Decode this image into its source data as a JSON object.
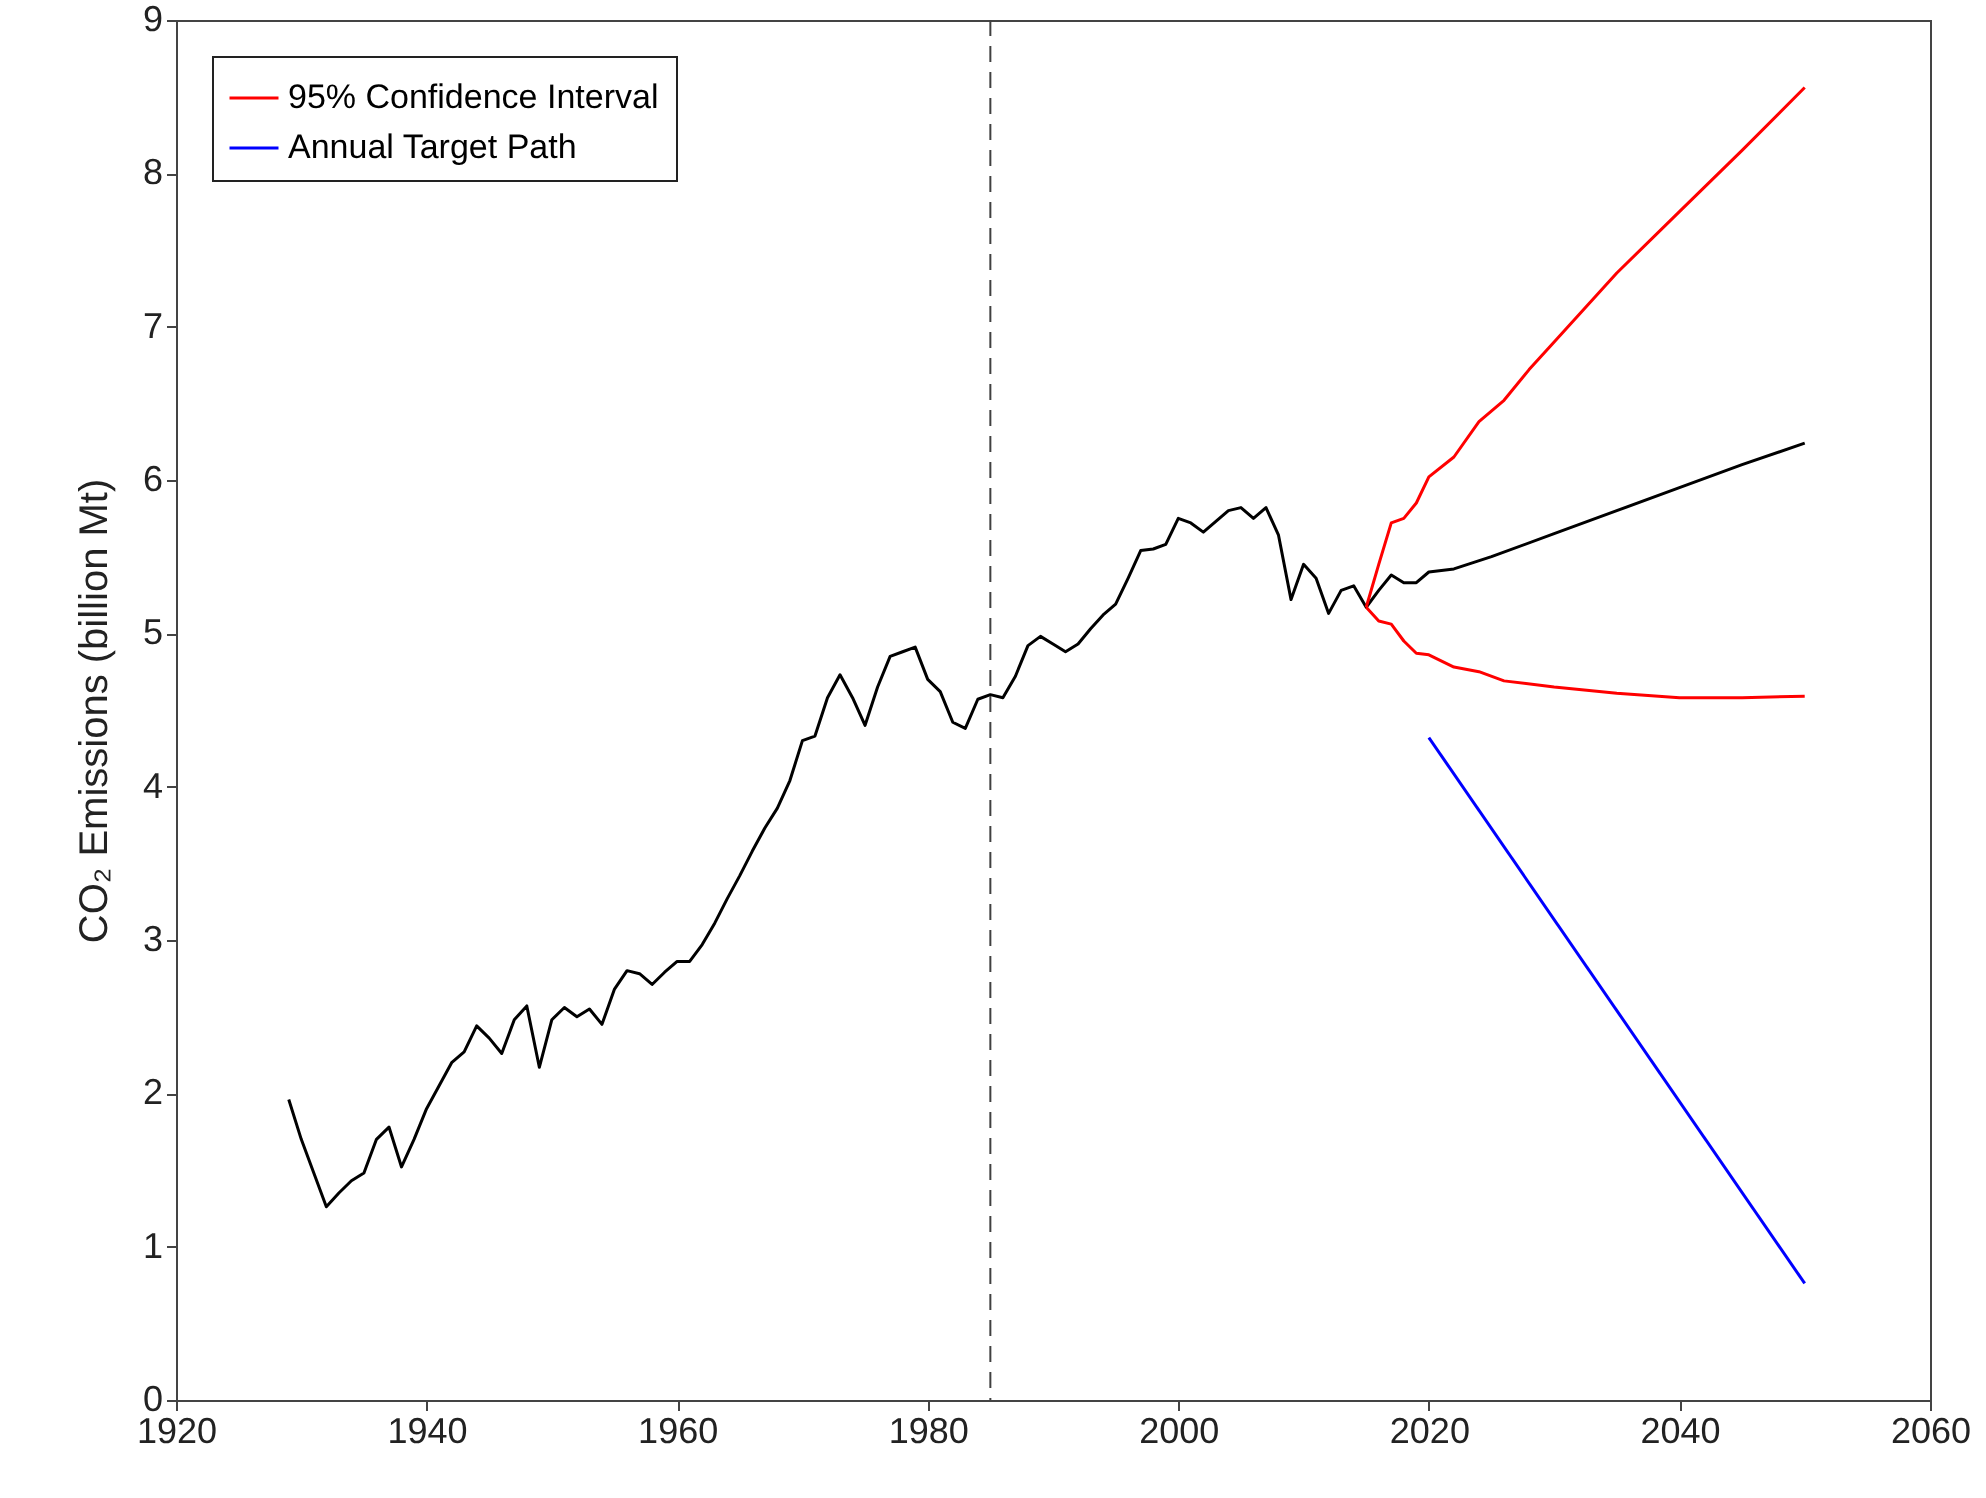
{
  "chart_data": {
    "type": "line",
    "ylabel": "CO₂ Emissions (billion Mt)",
    "xlim": [
      1920,
      2060
    ],
    "ylim": [
      0,
      9
    ],
    "xticks": [
      1920,
      1940,
      1960,
      1980,
      2000,
      2020,
      2040,
      2060
    ],
    "yticks": [
      0,
      1,
      2,
      3,
      4,
      5,
      6,
      7,
      8,
      9
    ],
    "legend": "top left",
    "ref_lines": [
      {
        "axis": "x",
        "value": 1985,
        "color": "#404040",
        "line_style": "dashed"
      }
    ],
    "series": [
      {
        "color": "#000000",
        "x": [
          1929,
          1930,
          1931,
          1932,
          1933,
          1934,
          1935,
          1936,
          1937,
          1938,
          1939,
          1940,
          1941,
          1942,
          1943,
          1944,
          1945,
          1946,
          1947,
          1948,
          1949,
          1950,
          1951,
          1952,
          1953,
          1954,
          1955,
          1956,
          1957,
          1958,
          1959,
          1960,
          1961,
          1962,
          1963,
          1964,
          1965,
          1966,
          1967,
          1968,
          1969,
          1970,
          1971,
          1972,
          1973,
          1974,
          1975,
          1976,
          1977,
          1978,
          1979,
          1980,
          1981,
          1982,
          1983,
          1984,
          1985,
          1986,
          1987,
          1988,
          1989,
          1990,
          1991,
          1992,
          1993,
          1994,
          1995,
          1996,
          1997,
          1998,
          1999,
          2000,
          2001,
          2002,
          2003,
          2004,
          2005,
          2006,
          2007,
          2008,
          2009,
          2010,
          2011,
          2012,
          2013,
          2014,
          2015,
          2016,
          2017,
          2018,
          2019,
          2020,
          2022,
          2025,
          2030,
          2035,
          2040,
          2045,
          2050
        ],
        "values": [
          1.96,
          1.7,
          1.48,
          1.26,
          1.35,
          1.43,
          1.48,
          1.7,
          1.78,
          1.52,
          1.7,
          1.9,
          2.05,
          2.2,
          2.27,
          2.44,
          2.36,
          2.26,
          2.48,
          2.57,
          2.17,
          2.48,
          2.56,
          2.5,
          2.55,
          2.45,
          2.68,
          2.8,
          2.78,
          2.71,
          2.79,
          2.86,
          2.86,
          2.97,
          3.11,
          3.27,
          3.42,
          3.58,
          3.73,
          3.86,
          4.04,
          4.3,
          4.33,
          4.58,
          4.73,
          4.58,
          4.4,
          4.65,
          4.85,
          4.88,
          4.91,
          4.7,
          4.62,
          4.42,
          4.38,
          4.57,
          4.6,
          4.58,
          4.72,
          4.92,
          4.98,
          4.93,
          4.88,
          4.93,
          5.03,
          5.12,
          5.19,
          5.36,
          5.54,
          5.55,
          5.58,
          5.75,
          5.72,
          5.66,
          5.73,
          5.8,
          5.82,
          5.75,
          5.82,
          5.64,
          5.22,
          5.45,
          5.36,
          5.13,
          5.28,
          5.31,
          5.17,
          5.28,
          5.38,
          5.33,
          5.33,
          5.4,
          5.42,
          5.5,
          5.65,
          5.8,
          5.95,
          6.1,
          6.24
        ]
      },
      {
        "name": "95% Confidence Interval",
        "color": "#ff0000",
        "x": [
          2015,
          2016,
          2017,
          2018,
          2019,
          2020,
          2022,
          2024,
          2026,
          2028,
          2030,
          2035,
          2040,
          2045,
          2050
        ],
        "values": [
          5.17,
          5.45,
          5.72,
          5.75,
          5.85,
          6.02,
          6.15,
          6.38,
          6.52,
          6.72,
          6.9,
          7.35,
          7.75,
          8.15,
          8.56
        ]
      },
      {
        "color": "#ff0000",
        "x": [
          2015,
          2016,
          2017,
          2018,
          2019,
          2020,
          2022,
          2024,
          2026,
          2030,
          2035,
          2040,
          2045,
          2050
        ],
        "values": [
          5.17,
          5.08,
          5.06,
          4.95,
          4.87,
          4.86,
          4.78,
          4.75,
          4.69,
          4.65,
          4.61,
          4.58,
          4.58,
          4.59
        ]
      },
      {
        "name": "Annual Target Path",
        "color": "#0000ff",
        "x": [
          2020,
          2050
        ],
        "values": [
          4.32,
          0.76
        ]
      }
    ]
  }
}
